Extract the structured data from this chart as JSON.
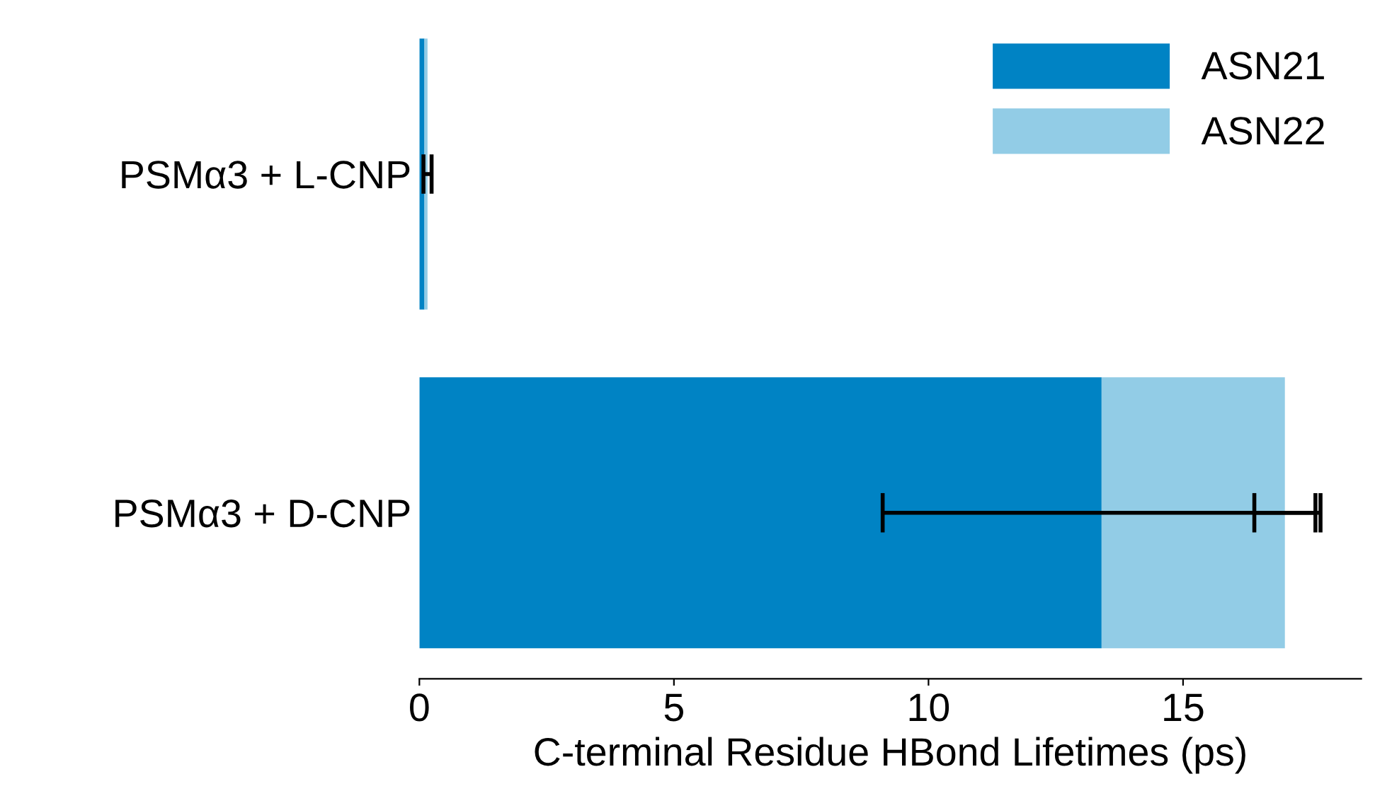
{
  "chart_data": {
    "type": "bar",
    "orientation": "horizontal",
    "stacked": true,
    "categories": [
      "PSMα3 + L-CNP",
      "PSMα3 + D-CNP"
    ],
    "series": [
      {
        "name": "ASN21",
        "color": "#0083c4",
        "values": [
          0.1,
          13.4
        ],
        "errors": [
          null,
          4.3
        ]
      },
      {
        "name": "ASN22",
        "color": "#92cce6",
        "values": [
          0.06,
          3.6
        ],
        "errors": [
          0.08,
          0.6
        ]
      }
    ],
    "xlabel": "C-terminal Residue HBond Lifetimes (ps)",
    "xlim": [
      0,
      18.5
    ],
    "xticks": [
      0,
      5,
      10,
      15
    ],
    "grid": false,
    "legend": "top right"
  }
}
